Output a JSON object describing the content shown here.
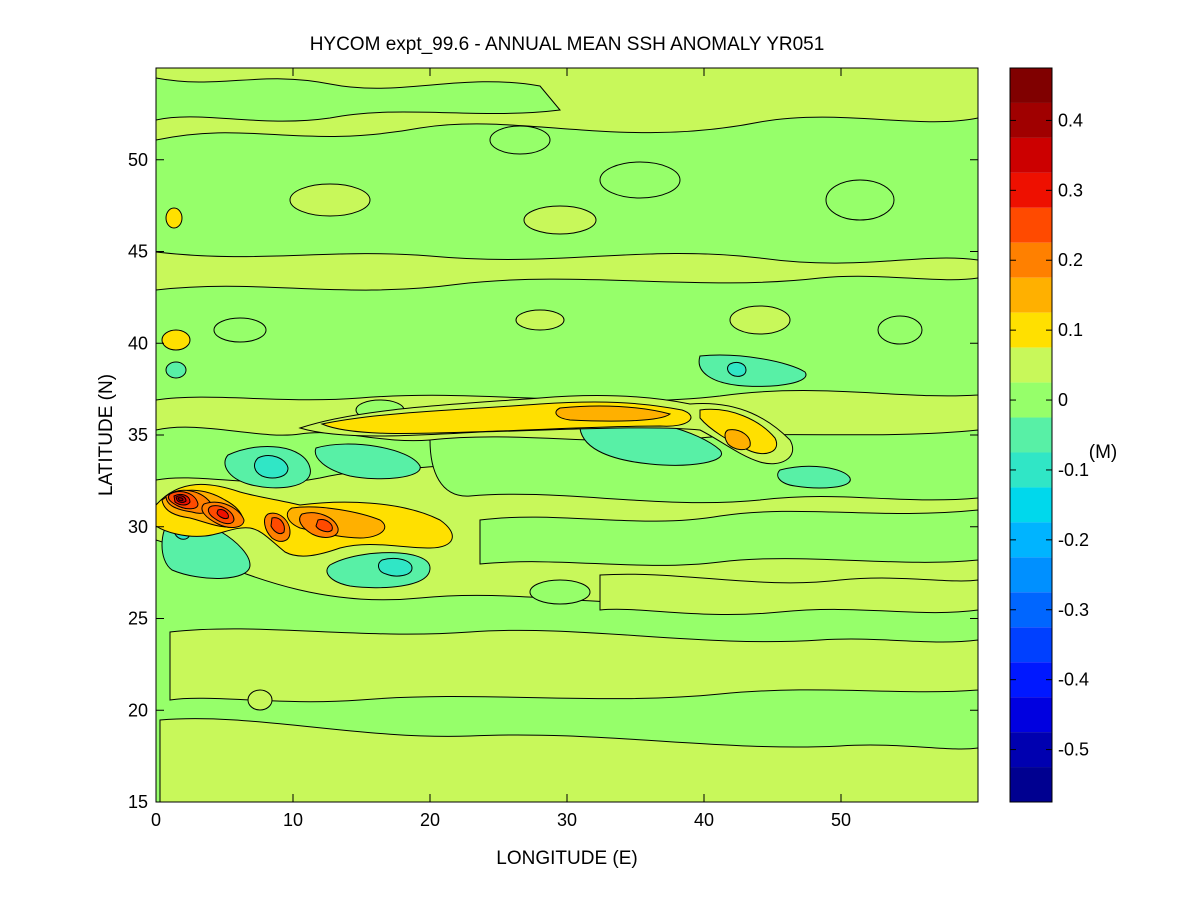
{
  "chart_data": {
    "type": "heatmap",
    "subtype": "filled-contour",
    "title": "HYCOM expt_99.6 - ANNUAL MEAN SSH ANOMALY YR051",
    "xlabel": "LONGITUDE (E)",
    "ylabel": "LATITUDE (N)",
    "xlim": [
      0,
      60
    ],
    "ylim": [
      15,
      55
    ],
    "xticks": [
      "0",
      "10",
      "20",
      "30",
      "40",
      "50"
    ],
    "yticks": [
      "15",
      "20",
      "25",
      "30",
      "35",
      "40",
      "45",
      "50"
    ],
    "colorbar": {
      "unit_label": "(M)",
      "range": [
        -0.575,
        0.475
      ],
      "colormap": "jet",
      "ticks": [
        "0.4",
        "0.3",
        "0.2",
        "0.1",
        "0",
        "-0.1",
        "-0.2",
        "-0.3",
        "-0.4",
        "-0.5"
      ],
      "levels": [
        0.45,
        0.4,
        0.35,
        0.3,
        0.25,
        0.2,
        0.15,
        0.1,
        0.05,
        0,
        -0.05,
        -0.1,
        -0.15,
        -0.2,
        -0.25,
        -0.3,
        -0.35,
        -0.4,
        -0.45,
        -0.5,
        -0.55
      ],
      "colors": [
        "#800000",
        "#a00000",
        "#cc0000",
        "#ee1000",
        "#ff4a00",
        "#ff8000",
        "#ffb000",
        "#ffe000",
        "#c8f85a",
        "#96ff6a",
        "#58f0a6",
        "#30e6c6",
        "#00d8ec",
        "#00b4ff",
        "#0090ff",
        "#0066ff",
        "#0040ff",
        "#0018ff",
        "#0000e0",
        "#0000b0",
        "#000090"
      ]
    },
    "features": [
      {
        "kind": "high",
        "lon": 1.5,
        "lat": 31.5,
        "value": 0.45
      },
      {
        "kind": "high",
        "lon": 5,
        "lat": 30.5,
        "value": 0.35
      },
      {
        "kind": "high",
        "lon": 9,
        "lat": 30,
        "value": 0.2
      },
      {
        "kind": "high",
        "lon": 12,
        "lat": 30,
        "value": 0.2
      },
      {
        "kind": "high",
        "lon": 17,
        "lat": 30.5,
        "value": 0.1
      },
      {
        "kind": "high",
        "lon": 30,
        "lat": 36,
        "value": 0.1
      },
      {
        "kind": "high",
        "lon": 42,
        "lat": 35,
        "value": 0.15
      },
      {
        "kind": "high",
        "lon": 1.5,
        "lat": 40,
        "value": 0.05
      },
      {
        "kind": "low",
        "lon": 2,
        "lat": 29.5,
        "value": -0.1
      },
      {
        "kind": "low",
        "lon": 15,
        "lat": 28,
        "value": -0.1
      },
      {
        "kind": "low",
        "lon": 9,
        "lat": 33,
        "value": -0.1
      },
      {
        "kind": "low",
        "lon": 16,
        "lat": 33,
        "value": -0.05
      },
      {
        "kind": "low",
        "lon": 33,
        "lat": 34.5,
        "value": -0.05
      },
      {
        "kind": "low",
        "lon": 43,
        "lat": 38.5,
        "value": -0.1
      },
      {
        "kind": "low",
        "lon": 48,
        "lat": 32.5,
        "value": -0.05
      }
    ]
  }
}
